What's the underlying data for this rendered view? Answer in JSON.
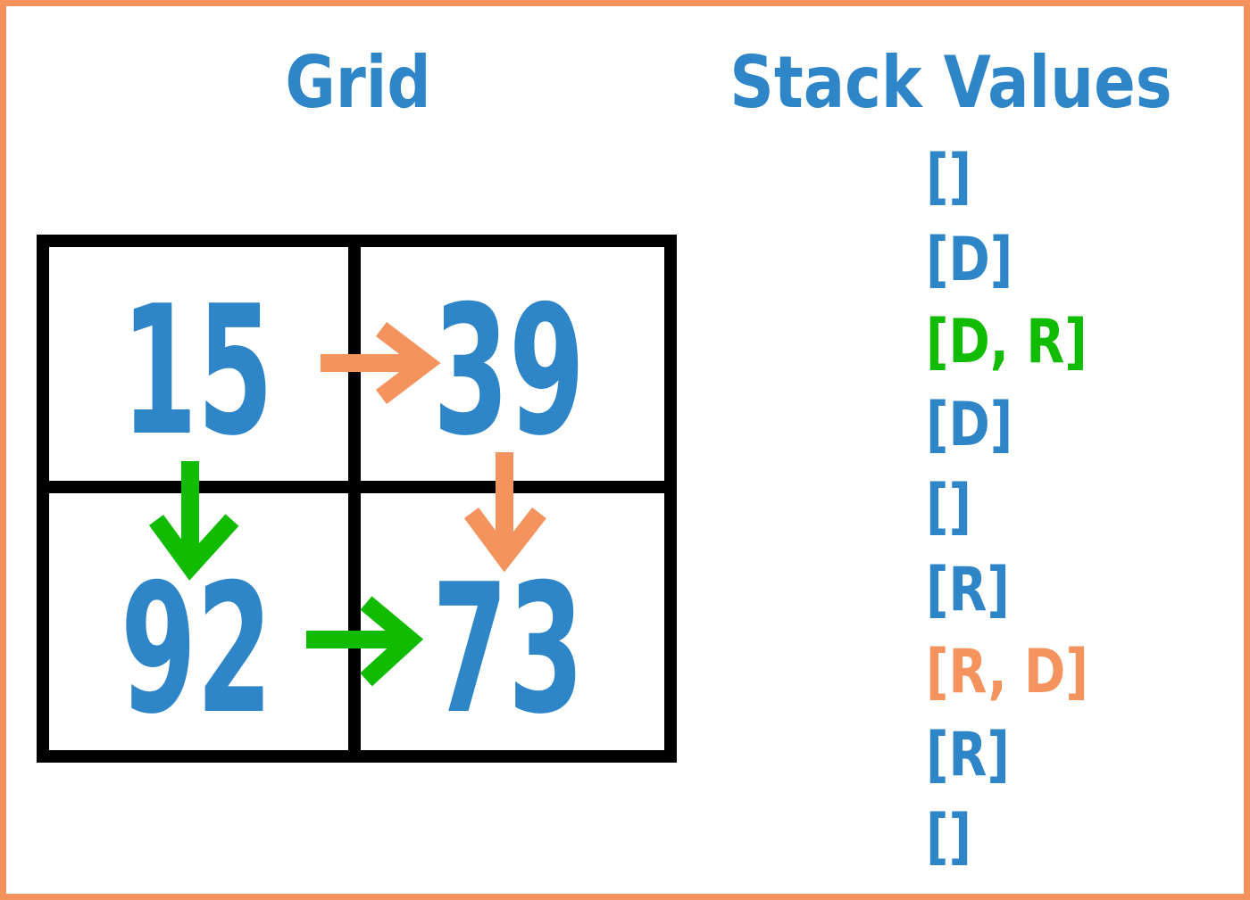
{
  "titles": {
    "grid": "Grid",
    "stack": "Stack Values"
  },
  "colors": {
    "frame": "#F4935E",
    "blue": "#2E86C8",
    "green": "#11BB00",
    "orange": "#F4935E",
    "gridline": "#000000"
  },
  "grid": {
    "cells": [
      {
        "id": "top-left",
        "value": "15"
      },
      {
        "id": "top-right",
        "value": "39"
      },
      {
        "id": "bottom-left",
        "value": "92"
      },
      {
        "id": "bottom-right",
        "value": "73"
      }
    ],
    "arrows": [
      {
        "id": "right-top",
        "from": "15",
        "to": "39",
        "direction": "right",
        "color": "orange"
      },
      {
        "id": "down-right",
        "from": "39",
        "to": "73",
        "direction": "down",
        "color": "orange"
      },
      {
        "id": "down-left",
        "from": "15",
        "to": "92",
        "direction": "down",
        "color": "green"
      },
      {
        "id": "right-bottom",
        "from": "92",
        "to": "73",
        "direction": "right",
        "color": "green"
      }
    ]
  },
  "stack": {
    "entries": [
      {
        "text": "[]",
        "color": "blue"
      },
      {
        "text": "[D]",
        "color": "blue"
      },
      {
        "text": "[D, R]",
        "color": "green"
      },
      {
        "text": "[D]",
        "color": "blue"
      },
      {
        "text": "[]",
        "color": "blue"
      },
      {
        "text": "[R]",
        "color": "blue"
      },
      {
        "text": "[R, D]",
        "color": "orange"
      },
      {
        "text": "[R]",
        "color": "blue"
      },
      {
        "text": "[]",
        "color": "blue"
      }
    ]
  }
}
